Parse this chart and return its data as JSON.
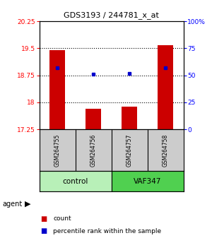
{
  "title": "GDS3193 / 244781_x_at",
  "samples": [
    "GSM264755",
    "GSM264756",
    "GSM264757",
    "GSM264758"
  ],
  "groups": [
    "control",
    "control",
    "VAF347",
    "VAF347"
  ],
  "bar_values": [
    19.45,
    17.83,
    17.88,
    19.58
  ],
  "percentile_values": [
    57,
    51,
    52,
    57
  ],
  "ylim_left": [
    17.25,
    20.25
  ],
  "ylim_right": [
    0,
    100
  ],
  "yticks_left": [
    17.25,
    18.0,
    18.75,
    19.5,
    20.25
  ],
  "ytick_labels_left": [
    "17.25",
    "18",
    "18.75",
    "19.5",
    "20.25"
  ],
  "yticks_right": [
    0,
    25,
    50,
    75,
    100
  ],
  "ytick_labels_right": [
    "0",
    "25",
    "50",
    "75",
    "100%"
  ],
  "hlines": [
    18.0,
    18.75,
    19.5
  ],
  "bar_color": "#CC0000",
  "dot_color": "#0000CC",
  "bar_bottom": 17.25,
  "group_colors": {
    "control": "#b8f0b8",
    "VAF347": "#50d050"
  },
  "sample_bg": "#cccccc",
  "background_color": "#ffffff"
}
